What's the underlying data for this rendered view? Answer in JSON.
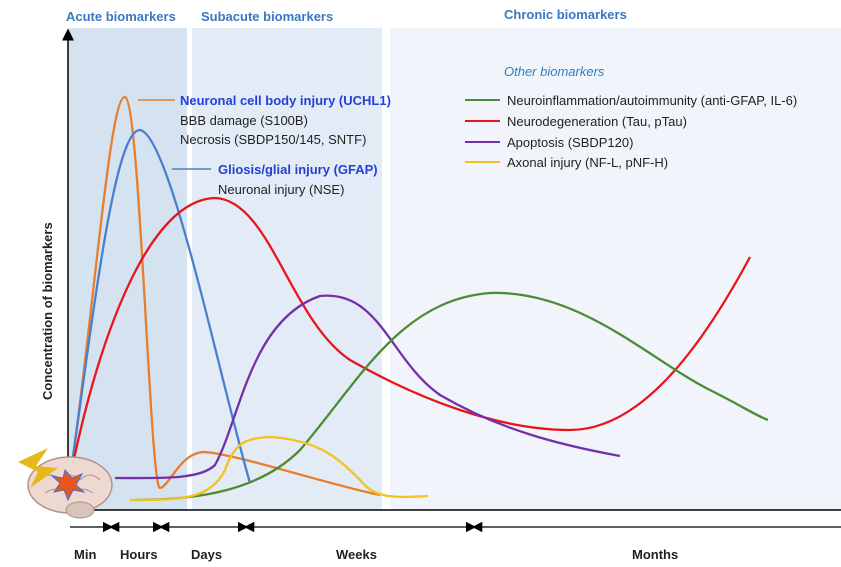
{
  "phases": [
    "Acute biomarkers",
    "Subacute biomarkers",
    "Chronic biomarkers"
  ],
  "y_axis_label": "Concentration of biomarkers",
  "time_labels": [
    "Min",
    "Hours",
    "Days",
    "Weeks",
    "Months"
  ],
  "early_legend": [
    {
      "title": "Neuronal cell body injury (UCHL1)",
      "lines": [
        "BBB damage (S100B)",
        "Necrosis (SBDP150/145, SNTF)"
      ]
    },
    {
      "title": "Gliosis/glial injury (GFAP)",
      "lines": [
        "Neuronal injury (NSE)"
      ]
    }
  ],
  "other_title": "Other biomarkers",
  "other_legend": [
    "Neuroinflammation/autoimmunity (anti-GFAP, IL-6)",
    "Neurodegeneration (Tau, pTau)",
    "Apoptosis (SBDP120)",
    "Axonal injury  (NF-L, pNF-H)"
  ]
}
